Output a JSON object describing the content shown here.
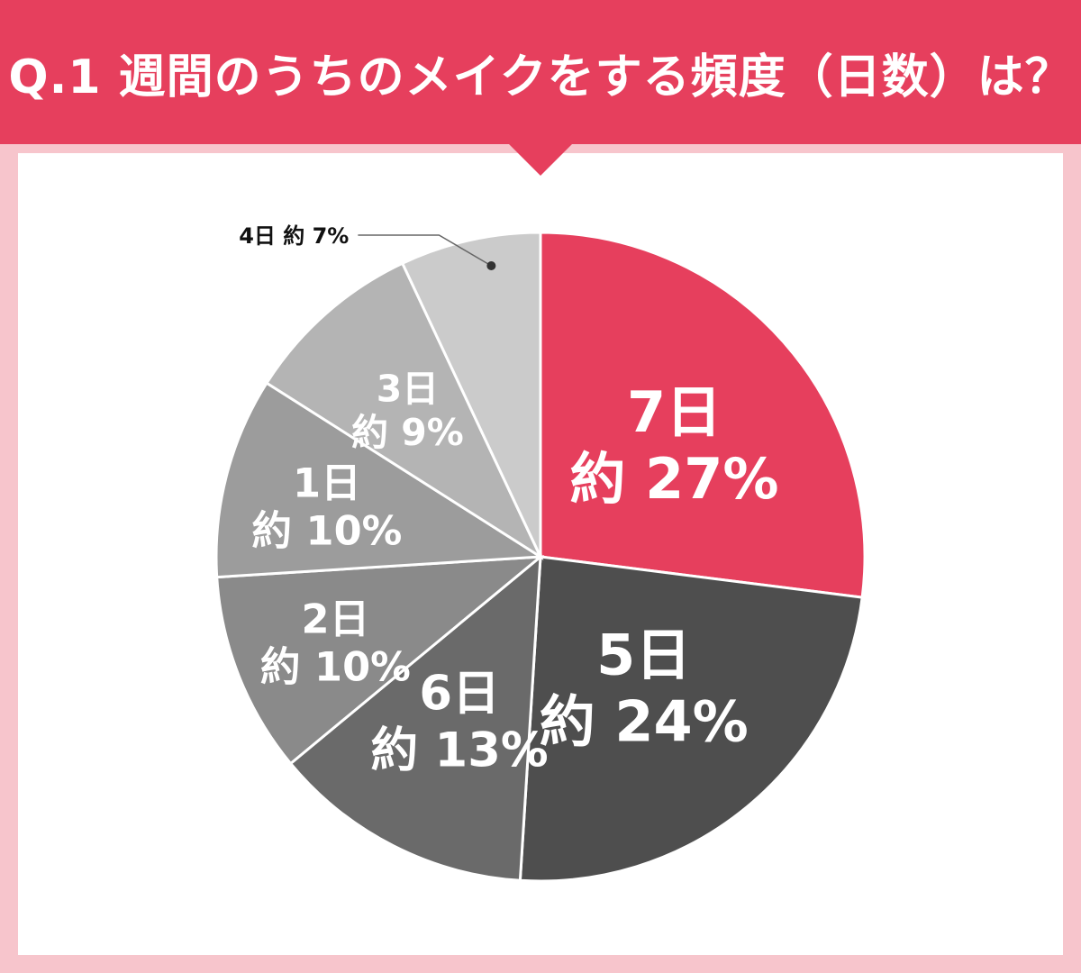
{
  "title": "Q.1 週間のうちのメイクをする頻度（日数）は？",
  "colors": {
    "accent": "#e63f5d",
    "background": "#f7c5cc",
    "panel": "#ffffff"
  },
  "chart_data": {
    "type": "pie",
    "title": "Q.1 週間のうちのメイクをする頻度（日数）は？",
    "slices": [
      {
        "label": "7日",
        "value_text": "約 27%",
        "value": 27,
        "color": "#e63f5d",
        "text_color": "#ffffff"
      },
      {
        "label": "5日",
        "value_text": "約 24%",
        "value": 24,
        "color": "#4e4e4e",
        "text_color": "#ffffff"
      },
      {
        "label": "6日",
        "value_text": "約 13%",
        "value": 13,
        "color": "#6a6a6a",
        "text_color": "#ffffff"
      },
      {
        "label": "2日",
        "value_text": "約 10%",
        "value": 10,
        "color": "#8a8a8a",
        "text_color": "#ffffff"
      },
      {
        "label": "1日",
        "value_text": "約 10%",
        "value": 10,
        "color": "#9c9c9c",
        "text_color": "#ffffff"
      },
      {
        "label": "3日",
        "value_text": "約 9%",
        "value": 9,
        "color": "#b4b4b4",
        "text_color": "#ffffff"
      },
      {
        "label": "4日",
        "value_text": "約 7%",
        "value": 7,
        "color": "#cbcbcb",
        "text_color": "#111111",
        "callout": true
      }
    ]
  }
}
